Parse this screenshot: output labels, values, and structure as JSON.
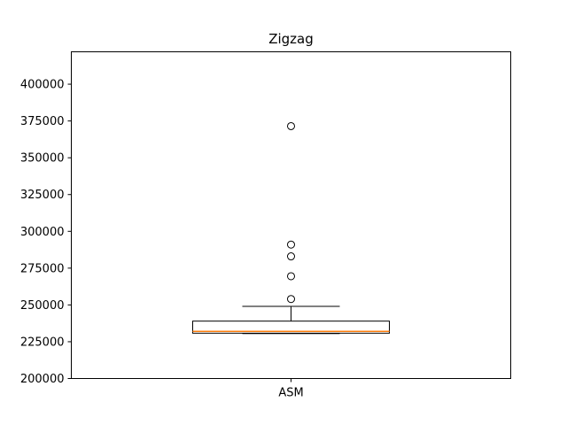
{
  "chart_data": {
    "type": "box",
    "title": "Zigzag",
    "xlabel": "",
    "ylabel": "",
    "categories": [
      "ASM"
    ],
    "ylim": [
      200000,
      422000
    ],
    "yticks": [
      200000,
      225000,
      250000,
      275000,
      300000,
      325000,
      350000,
      375000,
      400000
    ],
    "series": [
      {
        "whisker_low": 230500,
        "q1": 230800,
        "median": 232000,
        "q3": 239000,
        "whisker_high": 249000,
        "outliers": [
          254000,
          269500,
          283000,
          291000,
          371500
        ]
      }
    ],
    "grid": false,
    "colors": {
      "box": "#000000",
      "median": "#ff7f0e",
      "axes": "#000000"
    }
  }
}
